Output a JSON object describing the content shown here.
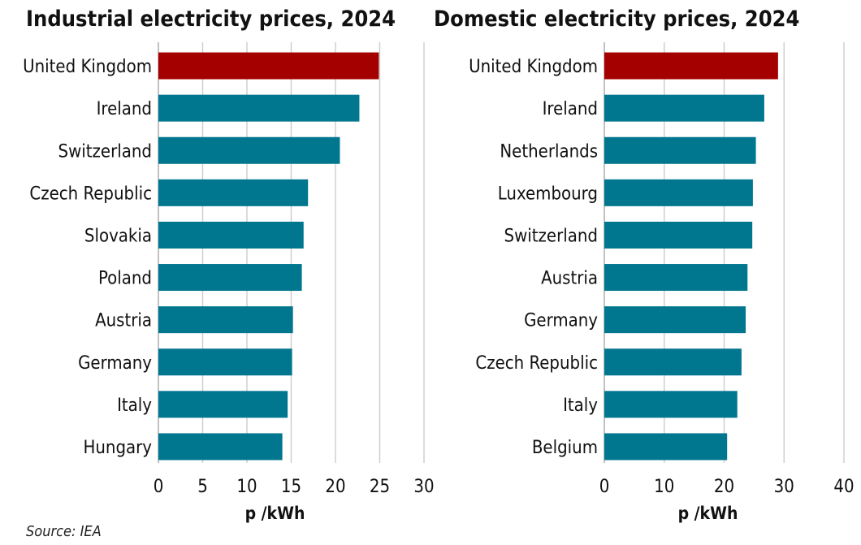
{
  "source": "Source: IEA",
  "chart_data": [
    {
      "type": "bar",
      "orientation": "horizontal",
      "title": "Industrial electricity prices, 2024",
      "xlabel": "p /kWh",
      "ylabel": "",
      "categories": [
        "United Kingdom",
        "Ireland",
        "Switzerland",
        "Czech Republic",
        "Slovakia",
        "Poland",
        "Austria",
        "Germany",
        "Italy",
        "Hungary"
      ],
      "values": [
        24.9,
        22.7,
        20.5,
        16.9,
        16.4,
        16.2,
        15.2,
        15.1,
        14.6,
        14.0
      ],
      "highlight": "United Kingdom",
      "xlim": [
        0,
        30
      ],
      "ticks": [
        0,
        5,
        10,
        15,
        20,
        25,
        30
      ],
      "grid": true,
      "colors": {
        "highlight": "#a50000",
        "default": "#00768f",
        "grid": "#cccccc"
      }
    },
    {
      "type": "bar",
      "orientation": "horizontal",
      "title": "Domestic electricity prices, 2024",
      "xlabel": "p /kWh",
      "ylabel": "",
      "categories": [
        "United Kingdom",
        "Ireland",
        "Netherlands",
        "Luxembourg",
        "Switzerland",
        "Austria",
        "Germany",
        "Czech Republic",
        "Italy",
        "Belgium"
      ],
      "values": [
        29.0,
        26.7,
        25.3,
        24.8,
        24.7,
        23.9,
        23.6,
        22.9,
        22.2,
        20.5
      ],
      "highlight": "United Kingdom",
      "xlim": [
        0,
        40
      ],
      "ticks": [
        0,
        10,
        20,
        30,
        40
      ],
      "grid": true,
      "colors": {
        "highlight": "#a50000",
        "default": "#00768f",
        "grid": "#cccccc"
      }
    }
  ]
}
